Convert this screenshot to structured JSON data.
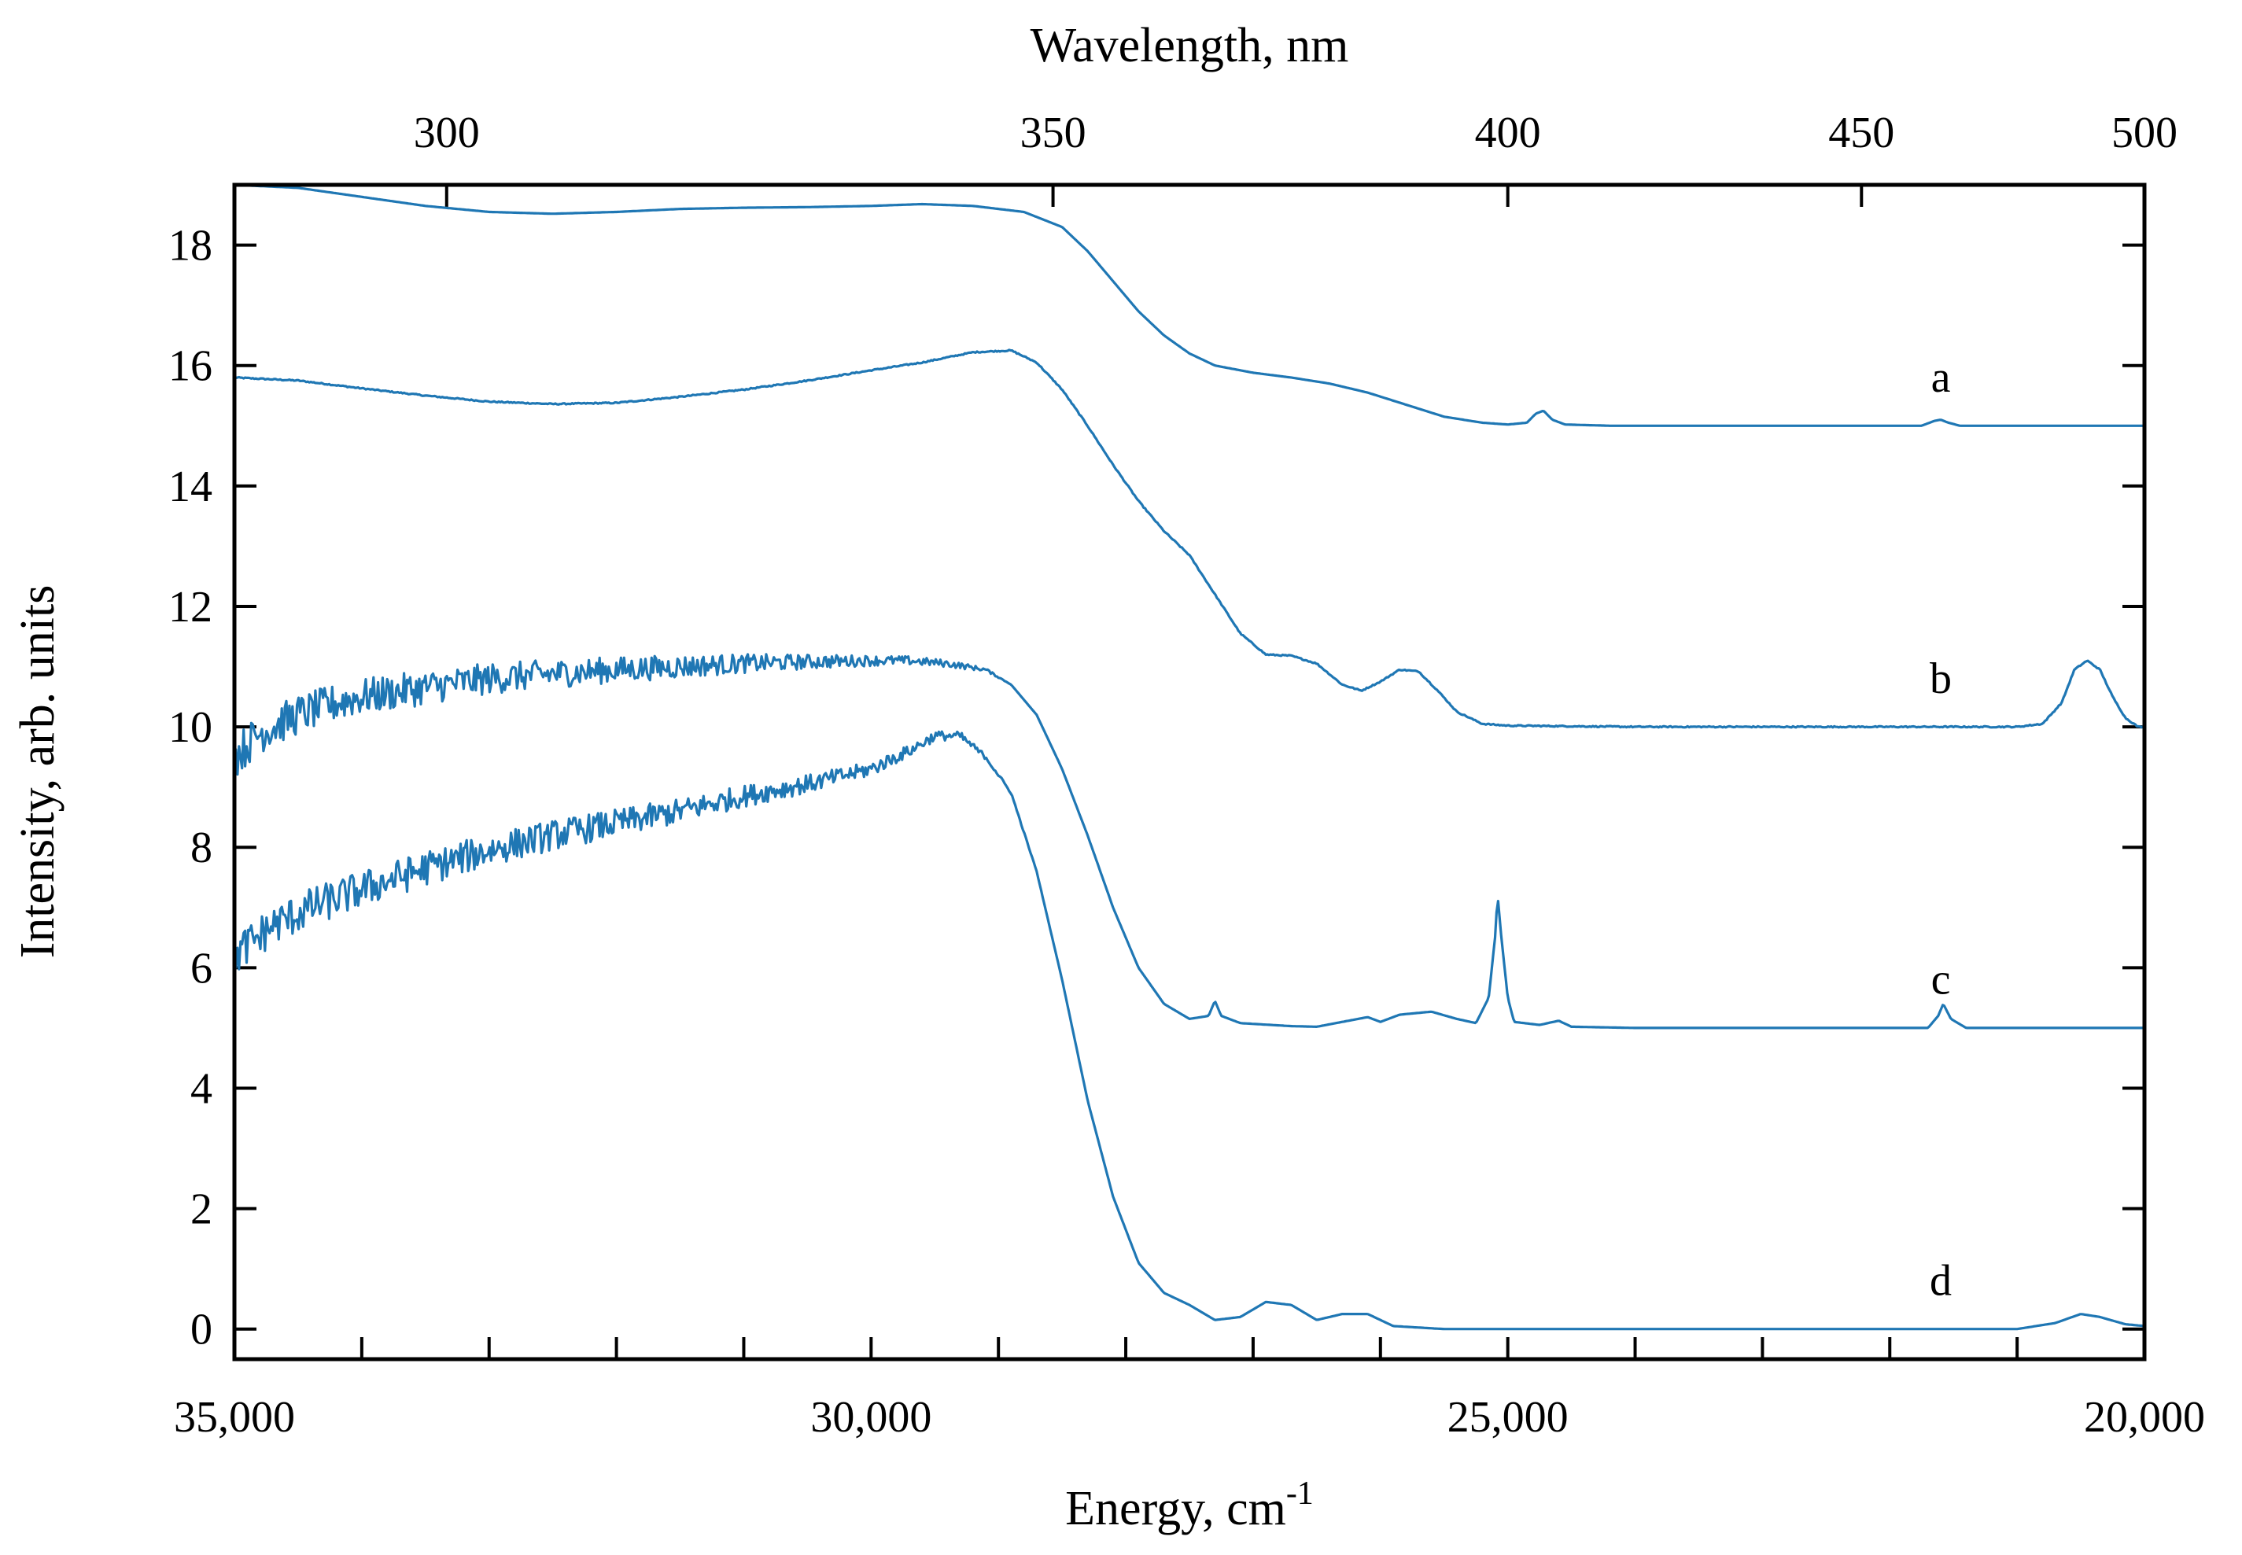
{
  "chart_data": {
    "type": "line",
    "title": "",
    "xlabel": "Energy, cm",
    "xlabel_superscript": "-1",
    "x2label": "Wavelength, nm",
    "ylabel": "Intensity, arb. units",
    "xlim": [
      35000,
      20000
    ],
    "ylim": [
      -0.5,
      19
    ],
    "grid": false,
    "line_color": "#1f77b4",
    "x_ticks": [
      35000,
      34000,
      33000,
      32000,
      31000,
      30000,
      29000,
      28000,
      27000,
      26000,
      25000,
      24000,
      23000,
      22000,
      21000,
      20000
    ],
    "x_tick_labels": [
      {
        "value": 35000,
        "label": "35,000"
      },
      {
        "value": 30000,
        "label": "30,000"
      },
      {
        "value": 25000,
        "label": "25,000"
      },
      {
        "value": 20000,
        "label": "20,000"
      }
    ],
    "y_ticks": [
      0,
      2,
      4,
      6,
      8,
      10,
      12,
      14,
      16,
      18
    ],
    "y_tick_labels": [
      "0",
      "2",
      "4",
      "6",
      "8",
      "10",
      "12",
      "14",
      "16",
      "18"
    ],
    "x2_ticks": [
      {
        "nm": 300,
        "label": "300"
      },
      {
        "nm": 350,
        "label": "350"
      },
      {
        "nm": 400,
        "label": "400"
      },
      {
        "nm": 450,
        "label": "450"
      },
      {
        "nm": 500,
        "label": "500"
      }
    ],
    "series": [
      {
        "name": "a",
        "label_pos": [
          21600,
          15.8
        ],
        "noise": 0,
        "points": [
          [
            35000,
            19.0
          ],
          [
            34500,
            18.95
          ],
          [
            34000,
            18.8
          ],
          [
            33500,
            18.65
          ],
          [
            33000,
            18.55
          ],
          [
            32500,
            18.52
          ],
          [
            32000,
            18.55
          ],
          [
            31500,
            18.6
          ],
          [
            31000,
            18.62
          ],
          [
            30500,
            18.63
          ],
          [
            30000,
            18.65
          ],
          [
            29600,
            18.68
          ],
          [
            29200,
            18.65
          ],
          [
            28800,
            18.55
          ],
          [
            28500,
            18.3
          ],
          [
            28300,
            17.9
          ],
          [
            28100,
            17.4
          ],
          [
            27900,
            16.9
          ],
          [
            27700,
            16.5
          ],
          [
            27500,
            16.2
          ],
          [
            27300,
            16.0
          ],
          [
            27000,
            15.88
          ],
          [
            26700,
            15.8
          ],
          [
            26400,
            15.7
          ],
          [
            26100,
            15.55
          ],
          [
            25800,
            15.35
          ],
          [
            25500,
            15.15
          ],
          [
            25200,
            15.05
          ],
          [
            25000,
            15.02
          ],
          [
            24850,
            15.05
          ],
          [
            24780,
            15.2
          ],
          [
            24720,
            15.25
          ],
          [
            24650,
            15.1
          ],
          [
            24550,
            15.02
          ],
          [
            24200,
            15.0
          ],
          [
            23000,
            15.0
          ],
          [
            22200,
            15.0
          ],
          [
            21750,
            15.0
          ],
          [
            21650,
            15.08
          ],
          [
            21600,
            15.1
          ],
          [
            21540,
            15.05
          ],
          [
            21450,
            15.0
          ],
          [
            21000,
            15.0
          ],
          [
            20000,
            15.0
          ]
        ]
      },
      {
        "name": "b",
        "label_pos": [
          21600,
          10.8
        ],
        "noise": 0.02,
        "points": [
          [
            35000,
            15.8
          ],
          [
            34500,
            15.75
          ],
          [
            34000,
            15.62
          ],
          [
            33500,
            15.5
          ],
          [
            33000,
            15.4
          ],
          [
            32500,
            15.36
          ],
          [
            32000,
            15.38
          ],
          [
            31500,
            15.48
          ],
          [
            31000,
            15.6
          ],
          [
            30500,
            15.75
          ],
          [
            30000,
            15.92
          ],
          [
            29600,
            16.05
          ],
          [
            29200,
            16.22
          ],
          [
            28900,
            16.25
          ],
          [
            28700,
            16.05
          ],
          [
            28500,
            15.6
          ],
          [
            28300,
            15.0
          ],
          [
            28100,
            14.35
          ],
          [
            27900,
            13.75
          ],
          [
            27700,
            13.25
          ],
          [
            27500,
            12.85
          ],
          [
            27300,
            12.2
          ],
          [
            27100,
            11.55
          ],
          [
            26900,
            11.2
          ],
          [
            26700,
            11.18
          ],
          [
            26500,
            11.05
          ],
          [
            26300,
            10.7
          ],
          [
            26150,
            10.6
          ],
          [
            26000,
            10.75
          ],
          [
            25850,
            10.95
          ],
          [
            25700,
            10.92
          ],
          [
            25550,
            10.6
          ],
          [
            25400,
            10.25
          ],
          [
            25200,
            10.05
          ],
          [
            25000,
            10.02
          ],
          [
            24000,
            10.0
          ],
          [
            21500,
            10.0
          ],
          [
            21000,
            10.0
          ],
          [
            20800,
            10.05
          ],
          [
            20650,
            10.4
          ],
          [
            20550,
            10.95
          ],
          [
            20450,
            11.1
          ],
          [
            20350,
            10.95
          ],
          [
            20250,
            10.5
          ],
          [
            20150,
            10.15
          ],
          [
            20050,
            10.0
          ],
          [
            20000,
            10.0
          ]
        ]
      },
      {
        "name": "c",
        "label_pos": [
          21600,
          5.8
        ],
        "noise": 0.35,
        "points": [
          [
            35000,
            9.5
          ],
          [
            34800,
            9.9
          ],
          [
            34500,
            10.2
          ],
          [
            34200,
            10.4
          ],
          [
            34000,
            10.5
          ],
          [
            33500,
            10.65
          ],
          [
            33000,
            10.8
          ],
          [
            32500,
            10.88
          ],
          [
            32000,
            10.95
          ],
          [
            31500,
            11.0
          ],
          [
            31000,
            11.05
          ],
          [
            30500,
            11.08
          ],
          [
            30000,
            11.1
          ],
          [
            29700,
            11.1
          ],
          [
            29400,
            11.05
          ],
          [
            29100,
            10.95
          ],
          [
            28900,
            10.7
          ],
          [
            28700,
            10.2
          ],
          [
            28500,
            9.3
          ],
          [
            28300,
            8.2
          ],
          [
            28100,
            7.0
          ],
          [
            27900,
            6.0
          ],
          [
            27700,
            5.4
          ],
          [
            27500,
            5.15
          ],
          [
            27350,
            5.2
          ],
          [
            27300,
            5.45
          ],
          [
            27250,
            5.2
          ],
          [
            27100,
            5.08
          ],
          [
            26700,
            5.03
          ],
          [
            26500,
            5.02
          ],
          [
            26300,
            5.1
          ],
          [
            26100,
            5.18
          ],
          [
            26000,
            5.1
          ],
          [
            25850,
            5.22
          ],
          [
            25600,
            5.27
          ],
          [
            25400,
            5.15
          ],
          [
            25250,
            5.08
          ],
          [
            25150,
            5.5
          ],
          [
            25100,
            6.5
          ],
          [
            25080,
            7.2
          ],
          [
            25050,
            6.5
          ],
          [
            25000,
            5.5
          ],
          [
            24950,
            5.1
          ],
          [
            24750,
            5.05
          ],
          [
            24600,
            5.12
          ],
          [
            24500,
            5.02
          ],
          [
            24000,
            5.0
          ],
          [
            22000,
            5.0
          ],
          [
            21700,
            5.0
          ],
          [
            21620,
            5.2
          ],
          [
            21580,
            5.4
          ],
          [
            21520,
            5.15
          ],
          [
            21400,
            5.0
          ],
          [
            20000,
            5.0
          ]
        ],
        "noise_scale": [
          [
            35000,
            1.0
          ],
          [
            31500,
            0.55
          ],
          [
            30000,
            0.25
          ],
          [
            29300,
            0.15
          ],
          [
            28900,
            0.0
          ],
          [
            20000,
            0.0
          ]
        ]
      },
      {
        "name": "d",
        "label_pos": [
          21600,
          0.8
        ],
        "noise": 0.35,
        "points": [
          [
            35000,
            6.2
          ],
          [
            34700,
            6.7
          ],
          [
            34400,
            7.0
          ],
          [
            34000,
            7.3
          ],
          [
            33500,
            7.65
          ],
          [
            33000,
            7.95
          ],
          [
            32500,
            8.2
          ],
          [
            32000,
            8.4
          ],
          [
            31500,
            8.6
          ],
          [
            31000,
            8.85
          ],
          [
            30500,
            9.05
          ],
          [
            30000,
            9.3
          ],
          [
            29700,
            9.6
          ],
          [
            29500,
            9.85
          ],
          [
            29300,
            9.85
          ],
          [
            29100,
            9.5
          ],
          [
            28900,
            8.9
          ],
          [
            28700,
            7.6
          ],
          [
            28500,
            5.8
          ],
          [
            28300,
            3.8
          ],
          [
            28100,
            2.2
          ],
          [
            27900,
            1.1
          ],
          [
            27700,
            0.6
          ],
          [
            27500,
            0.4
          ],
          [
            27300,
            0.15
          ],
          [
            27100,
            0.2
          ],
          [
            26900,
            0.45
          ],
          [
            26700,
            0.4
          ],
          [
            26500,
            0.15
          ],
          [
            26300,
            0.25
          ],
          [
            26100,
            0.25
          ],
          [
            25900,
            0.05
          ],
          [
            25500,
            0.0
          ],
          [
            24000,
            0.0
          ],
          [
            21000,
            0.0
          ],
          [
            20700,
            0.1
          ],
          [
            20500,
            0.25
          ],
          [
            20350,
            0.2
          ],
          [
            20150,
            0.08
          ],
          [
            20000,
            0.05
          ]
        ],
        "noise_scale": [
          [
            35000,
            1.0
          ],
          [
            31500,
            0.6
          ],
          [
            30000,
            0.35
          ],
          [
            29300,
            0.2
          ],
          [
            28900,
            0.05
          ],
          [
            28600,
            0.0
          ],
          [
            20000,
            0.0
          ]
        ]
      }
    ]
  }
}
